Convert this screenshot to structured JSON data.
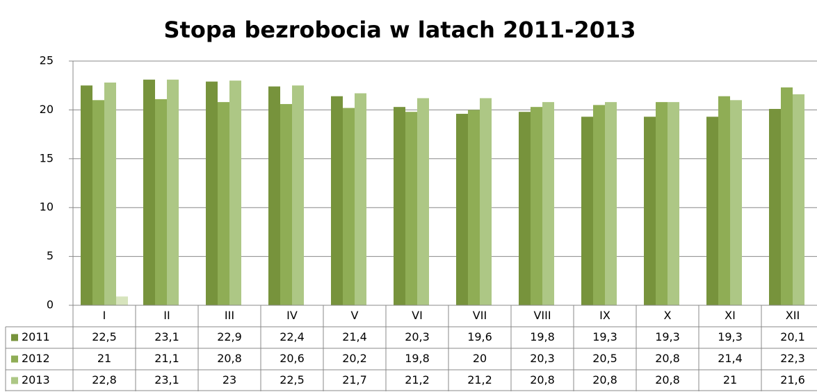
{
  "chart_data": {
    "type": "bar",
    "title": "Stopa bezrobocia w latach 2011-2013",
    "categories": [
      "I",
      "II",
      "III",
      "IV",
      "V",
      "VI",
      "VII",
      "VIII",
      "IX",
      "X",
      "XI",
      "XII"
    ],
    "series": [
      {
        "name": "2011",
        "color": "#77933c",
        "values": [
          22.5,
          23.1,
          22.9,
          22.4,
          21.4,
          20.3,
          19.6,
          19.8,
          19.3,
          19.3,
          19.3,
          20.1
        ],
        "value_labels": [
          "22,5",
          "23,1",
          "22,9",
          "22,4",
          "21,4",
          "20,3",
          "19,6",
          "19,8",
          "19,3",
          "19,3",
          "19,3",
          "20,1"
        ]
      },
      {
        "name": "2012",
        "color": "#8fad55",
        "values": [
          21,
          21.1,
          20.8,
          20.6,
          20.2,
          19.8,
          20,
          20.3,
          20.5,
          20.8,
          21.4,
          22.3
        ],
        "value_labels": [
          "21",
          "21,1",
          "20,8",
          "20,6",
          "20,2",
          "19,8",
          "20",
          "20,3",
          "20,5",
          "20,8",
          "21,4",
          "22,3"
        ]
      },
      {
        "name": "2013",
        "color": "#adc785",
        "values": [
          22.8,
          23.1,
          23,
          22.5,
          21.7,
          21.2,
          21.2,
          20.8,
          20.8,
          20.8,
          21,
          21.6
        ],
        "value_labels": [
          "22,8",
          "23,1",
          "23",
          "22,5",
          "21,7",
          "21,2",
          "21,2",
          "20,8",
          "20,8",
          "20,8",
          "21",
          "21,6"
        ]
      },
      {
        "color": "#d7e4bd",
        "values": [
          0.9,
          null,
          null,
          null,
          null,
          null,
          null,
          null,
          null,
          null,
          null,
          null
        ]
      }
    ],
    "ylim": [
      0,
      25
    ],
    "yticks": [
      0,
      5,
      10,
      15,
      20,
      25
    ],
    "grid": true
  }
}
